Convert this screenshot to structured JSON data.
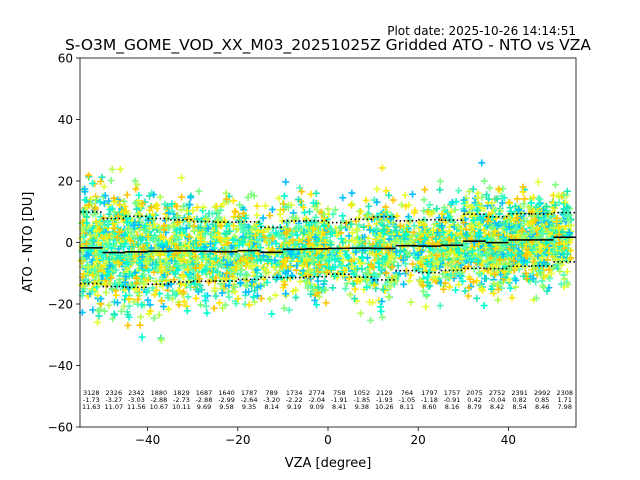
{
  "chart_data": {
    "type": "scatter",
    "title": "S-O3M_GOME_VOD_XX_M03_20251025Z Gridded ATO - NTO vs VZA",
    "plot_date": "Plot date: 2025-10-26 14:14:51",
    "xlabel": "VZA [degree]",
    "ylabel": "ATO - NTO [DU]",
    "xlim": [
      -55,
      55
    ],
    "ylim": [
      -60,
      60
    ],
    "xticks": [
      -40,
      -20,
      0,
      20,
      40
    ],
    "yticks": [
      -60,
      -40,
      -20,
      0,
      20,
      40,
      60
    ],
    "grid": false,
    "marker": "+",
    "marker_colors": [
      "#00bfff",
      "#1de9b6",
      "#7fff7f",
      "#b4ff50",
      "#e6ff2e",
      "#ffe600",
      "#ffc400",
      "#4dffb8",
      "#00ffd0"
    ],
    "bins": {
      "centers": [
        -52.5,
        -47.5,
        -42.5,
        -37.5,
        -32.5,
        -27.5,
        -22.5,
        -17.5,
        -12.5,
        -7.5,
        -2.5,
        2.5,
        7.5,
        12.5,
        17.5,
        22.5,
        27.5,
        32.5,
        37.5,
        42.5,
        47.5,
        52.5
      ],
      "counts": [
        "3128",
        "2326",
        "2342",
        "1880",
        "1829",
        "1687",
        "1640",
        "1787",
        "789",
        "1734",
        "2774",
        "758",
        "1052",
        "2129",
        "764",
        "1797",
        "1757",
        "2075",
        "2752",
        "2391",
        "2992",
        "2308"
      ],
      "means": [
        "-1.73",
        "-3.27",
        "-3.03",
        "-2.88",
        "-2.73",
        "-2.88",
        "-2.99",
        "-2.64",
        "-3.20",
        "-2.22",
        "-2.04",
        "-1.91",
        "-1.85",
        "-1.93",
        "-1.05",
        "-1.18",
        "-0.91",
        "0.42",
        "-0.04",
        "0.82",
        "0.85",
        "1.71"
      ],
      "stds": [
        "11.63",
        "11.07",
        "11.56",
        "10.67",
        "10.11",
        "9.69",
        "9.58",
        "9.35",
        "8.14",
        "9.19",
        "9.09",
        "8.41",
        "9.38",
        "10.26",
        "8.11",
        "8.60",
        "8.16",
        "8.79",
        "8.42",
        "8.54",
        "8.46",
        "7.98"
      ]
    },
    "series": [
      {
        "name": "mean",
        "style": "solid",
        "color": "#000000"
      },
      {
        "name": "mean ± std",
        "style": "dotted",
        "color": "#000000"
      }
    ]
  }
}
